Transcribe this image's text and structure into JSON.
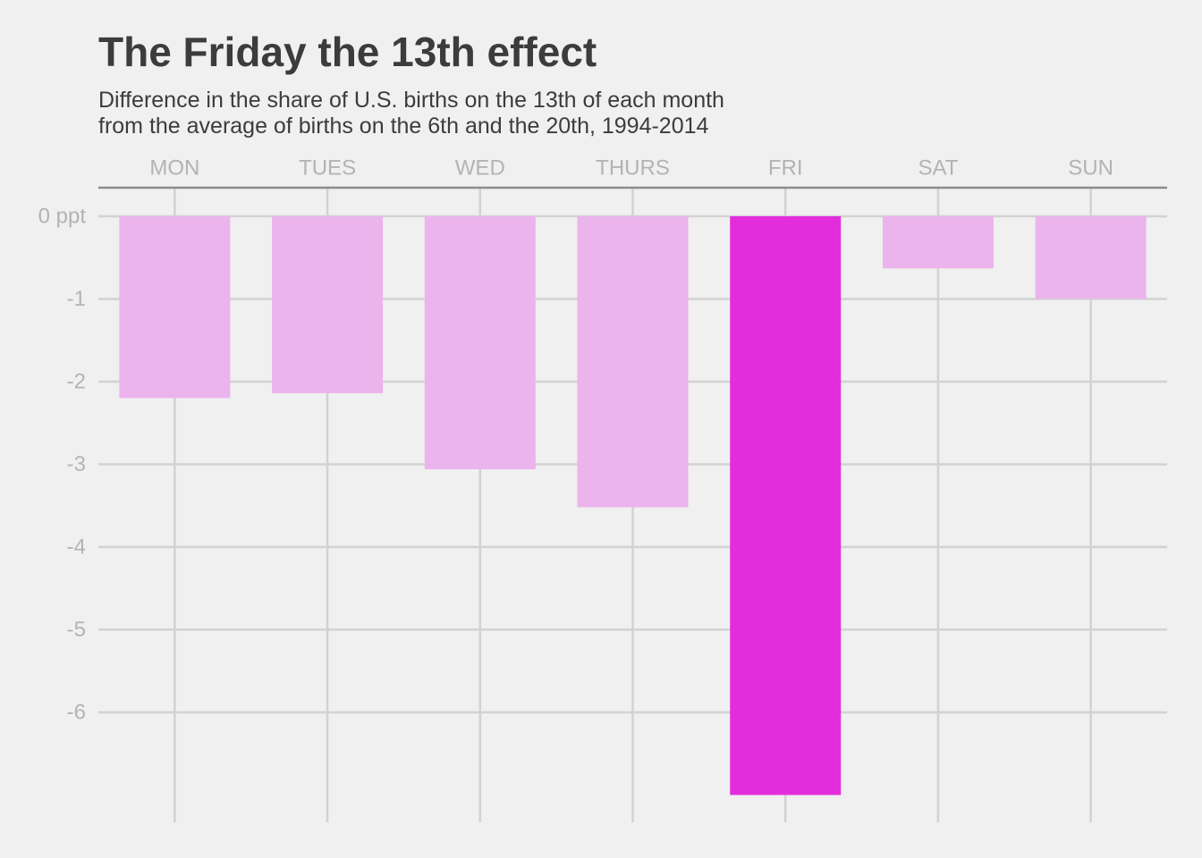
{
  "chart_data": {
    "type": "bar",
    "title": "The Friday the 13th effect",
    "subtitle": [
      "Difference in the share of U.S. births on the 13th of each month",
      "from the average of births on the 6th and the 20th, 1994-2014"
    ],
    "xlabel": "",
    "ylabel": "",
    "categories": [
      "MON",
      "TUES",
      "WED",
      "THURS",
      "FRI",
      "SAT",
      "SUN"
    ],
    "values": [
      -2.2,
      -2.14,
      -3.06,
      -3.52,
      -7.0,
      -0.63,
      -1.0
    ],
    "highlight_category": "FRI",
    "x_axis_position": "top",
    "ylim": [
      -7.3,
      0.35
    ],
    "yticks": [
      0,
      -1,
      -2,
      -3,
      -4,
      -5,
      -6
    ],
    "ytick_labels": [
      "0 ppt",
      "-1",
      "-2",
      "-3",
      "-4",
      "-5",
      "-6"
    ],
    "grid": true,
    "legend": "none",
    "colors": {
      "background": "#f0f0f0",
      "bar": "#ebb4ec",
      "highlight_bar": "#e32ddc",
      "grid": "#d2d2d2",
      "axis_line": "#8c8c8c",
      "tick_text": "#b3b3b3",
      "title_text": "#3c3c3c"
    }
  }
}
